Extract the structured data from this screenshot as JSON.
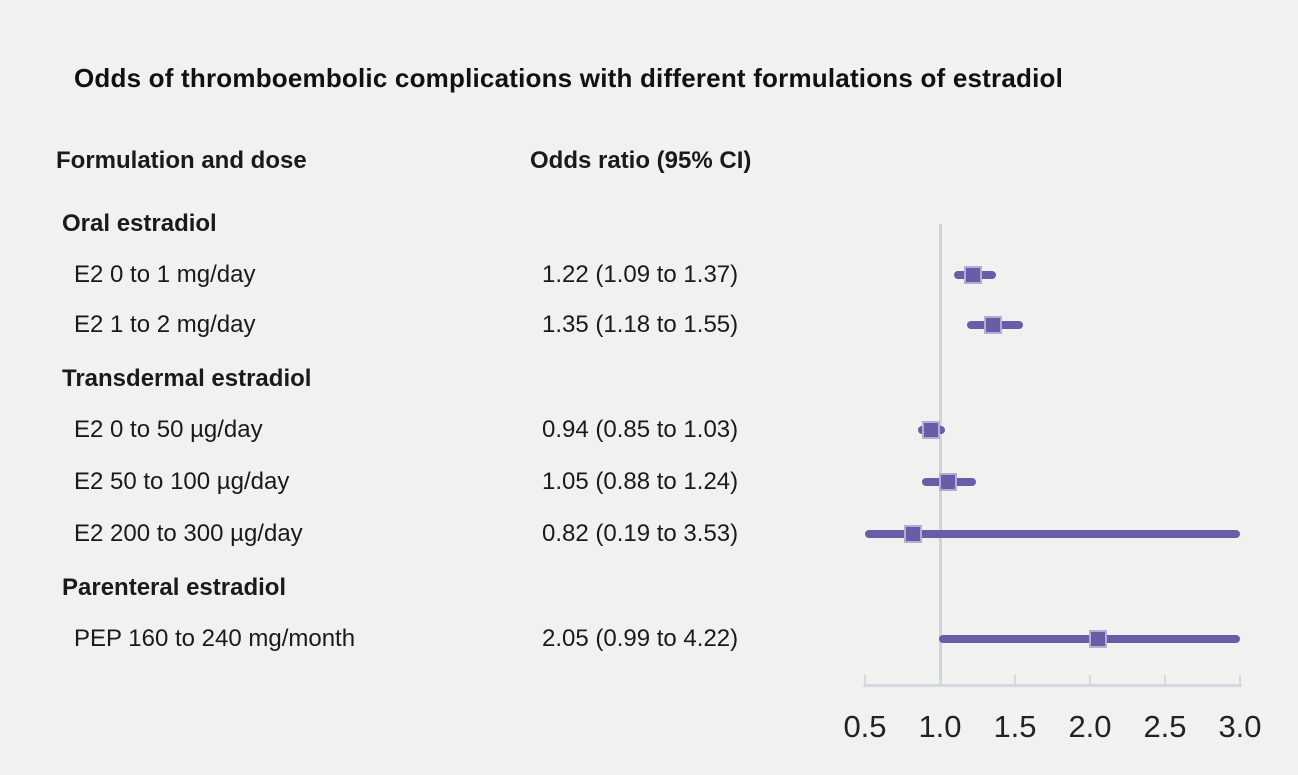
{
  "title": "Odds of thromboembolic complications with different formulations of estradiol",
  "columns": {
    "formulation": "Formulation and dose",
    "odds_ratio": "Odds ratio (95% CI)"
  },
  "colors": {
    "background": "#f1f1ef",
    "text": "#1a1a1a",
    "marker": "#6a5ca7",
    "marker_border": "#b5abd5",
    "axis_line": "#d3d9df",
    "reference_line": "#cdd4db"
  },
  "chart_data": {
    "type": "scatter",
    "variant": "forest-plot",
    "title": "Odds of thromboembolic complications with different formulations of estradiol",
    "x_axis": {
      "scale": "linear",
      "xlim": [
        0.5,
        3.0
      ],
      "tick_labels": [
        "0.5",
        "1.0",
        "1.5",
        "2.0",
        "2.5",
        "3.0"
      ],
      "tick_values": [
        0.5,
        1.0,
        1.5,
        2.0,
        2.5,
        3.0
      ],
      "reference_value": 1.0
    },
    "rows": [
      {
        "kind": "group",
        "label": "Oral estradiol"
      },
      {
        "kind": "item",
        "label": "E2 0 to 1 mg/day",
        "value_text": "1.22 (1.09 to 1.37)",
        "estimate": 1.22,
        "ci_low": 1.09,
        "ci_high": 1.37
      },
      {
        "kind": "item",
        "label": "E2 1 to 2 mg/day",
        "value_text": "1.35 (1.18 to 1.55)",
        "estimate": 1.35,
        "ci_low": 1.18,
        "ci_high": 1.55
      },
      {
        "kind": "group",
        "label": "Transdermal estradiol"
      },
      {
        "kind": "item",
        "label": "E2 0 to 50 µg/day",
        "value_text": "0.94 (0.85 to 1.03)",
        "estimate": 0.94,
        "ci_low": 0.85,
        "ci_high": 1.03
      },
      {
        "kind": "item",
        "label": "E2 50 to 100 µg/day",
        "value_text": "1.05 (0.88 to 1.24)",
        "estimate": 1.05,
        "ci_low": 0.88,
        "ci_high": 1.24
      },
      {
        "kind": "item",
        "label": "E2 200 to 300 µg/day",
        "value_text": "0.82 (0.19 to 3.53)",
        "estimate": 0.82,
        "ci_low": 0.19,
        "ci_high": 3.53
      },
      {
        "kind": "group",
        "label": "Parenteral estradiol"
      },
      {
        "kind": "item",
        "label": "PEP 160 to 240 mg/month",
        "value_text": "2.05 (0.99 to 4.22)",
        "estimate": 2.05,
        "ci_low": 0.99,
        "ci_high": 4.22
      }
    ]
  }
}
